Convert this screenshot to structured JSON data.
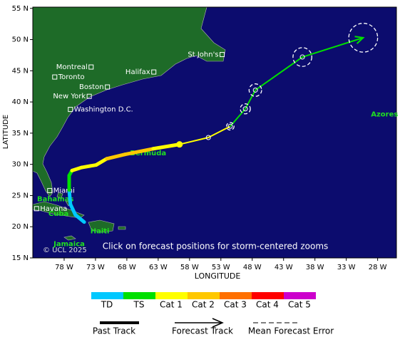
{
  "map": {
    "lonlim": [
      -83,
      -25
    ],
    "latlim": [
      15,
      55.2
    ],
    "lonticks": [
      {
        "value": -78,
        "label": "78 W"
      },
      {
        "value": -73,
        "label": "73 W"
      },
      {
        "value": -68,
        "label": "68 W"
      },
      {
        "value": -63,
        "label": "63 W"
      },
      {
        "value": -58,
        "label": "58 W"
      },
      {
        "value": -53,
        "label": "53 W"
      },
      {
        "value": -48,
        "label": "48 W"
      },
      {
        "value": -43,
        "label": "43 W"
      },
      {
        "value": -38,
        "label": "38 W"
      },
      {
        "value": -33,
        "label": "33 W"
      },
      {
        "value": -28,
        "label": "28 W"
      }
    ],
    "latticks": [
      {
        "value": 15,
        "label": "15 N"
      },
      {
        "value": 20,
        "label": "20 N"
      },
      {
        "value": 25,
        "label": "25 N"
      },
      {
        "value": 30,
        "label": "30 N"
      },
      {
        "value": 35,
        "label": "35 N"
      },
      {
        "value": 40,
        "label": "40 N"
      },
      {
        "value": 45,
        "label": "45 N"
      },
      {
        "value": 50,
        "label": "50 N"
      },
      {
        "value": 55,
        "label": "55 N"
      }
    ],
    "xlabel": "LONGITUDE",
    "ylabel": "LATITUDE",
    "cities": [
      {
        "name": "Montreal",
        "lon": -73.7,
        "lat": 45.6,
        "side": "left"
      },
      {
        "name": "Toronto",
        "lon": -79.5,
        "lat": 44.0,
        "side": "right"
      },
      {
        "name": "Boston",
        "lon": -71.1,
        "lat": 42.4,
        "side": "left"
      },
      {
        "name": "New York",
        "lon": -74.0,
        "lat": 40.9,
        "side": "left"
      },
      {
        "name": "Washington D.C.",
        "lon": -77.0,
        "lat": 38.8,
        "side": "right"
      },
      {
        "name": "St John's",
        "lon": -52.8,
        "lat": 47.6,
        "side": "left"
      },
      {
        "name": "Halifax",
        "lon": -63.7,
        "lat": 44.8,
        "side": "left"
      },
      {
        "name": "Miami",
        "lon": -80.3,
        "lat": 25.8,
        "side": "right"
      },
      {
        "name": "Havana",
        "lon": -82.4,
        "lat": 22.9,
        "side": "right"
      }
    ],
    "regions": [
      {
        "name": "Bermuda",
        "lon": -64.6,
        "lat": 31.8
      },
      {
        "name": "Bahamas",
        "lon": -79.4,
        "lat": 24.4
      },
      {
        "name": "Cuba",
        "lon": -78.9,
        "lat": 22.1
      },
      {
        "name": "Haiti",
        "lon": -72.3,
        "lat": 19.3
      },
      {
        "name": "Jamaica",
        "lon": -77.2,
        "lat": 17.2
      },
      {
        "name": "Azores",
        "lon": -26.9,
        "lat": 38.0
      }
    ],
    "copyright": "© UCL 2025",
    "note": "Click on forecast positions for storm-centered zooms"
  },
  "track": {
    "past": [
      {
        "lon": -74.8,
        "lat": 20.75,
        "cat": "TD"
      },
      {
        "lon": -76.2,
        "lat": 21.9,
        "cat": "TD"
      },
      {
        "lon": -77.0,
        "lat": 23.6,
        "cat": "TD"
      },
      {
        "lon": -77.2,
        "lat": 25.9,
        "cat": "TS"
      },
      {
        "lon": -77.2,
        "lat": 28.2,
        "cat": "TS"
      },
      {
        "lon": -76.75,
        "lat": 29.0,
        "cat": "Cat 1"
      },
      {
        "lon": -75.2,
        "lat": 29.5,
        "cat": "Cat 1"
      },
      {
        "lon": -72.9,
        "lat": 29.9,
        "cat": "Cat 1"
      },
      {
        "lon": -71.2,
        "lat": 30.9,
        "cat": "Cat 2"
      },
      {
        "lon": -68.3,
        "lat": 31.6,
        "cat": "Cat 2"
      },
      {
        "lon": -63.8,
        "lat": 32.5,
        "cat": "Cat 1"
      },
      {
        "lon": -59.6,
        "lat": 33.2,
        "cat": "Cat 1"
      }
    ],
    "forecast": [
      {
        "lon": -55.0,
        "lat": 34.3,
        "cat": "Cat 1",
        "error_deg": 0
      },
      {
        "lon": -51.5,
        "lat": 36.1,
        "cat": "TS",
        "error_deg": 0.6
      },
      {
        "lon": -49.1,
        "lat": 38.9,
        "cat": "TS",
        "error_deg": 0.8
      },
      {
        "lon": -47.5,
        "lat": 41.9,
        "cat": "TS",
        "error_deg": 1.0
      },
      {
        "lon": -40.0,
        "lat": 47.2,
        "cat": "TS",
        "error_deg": 1.5
      },
      {
        "lon": -30.3,
        "lat": 50.3,
        "cat": "TS",
        "error_deg": 2.3
      }
    ]
  },
  "legend": {
    "categories": [
      {
        "label": "TD",
        "color": "#00c8ff"
      },
      {
        "label": "TS",
        "color": "#00e000"
      },
      {
        "label": "Cat 1",
        "color": "#ffff00"
      },
      {
        "label": "Cat 2",
        "color": "#ffc800"
      },
      {
        "label": "Cat 3",
        "color": "#ff7000"
      },
      {
        "label": "Cat 4",
        "color": "#ff0000"
      },
      {
        "label": "Cat 5",
        "color": "#cc00cc"
      }
    ],
    "lines": [
      "Past Track",
      "Forecast Track",
      "Mean Forecast Error"
    ]
  }
}
